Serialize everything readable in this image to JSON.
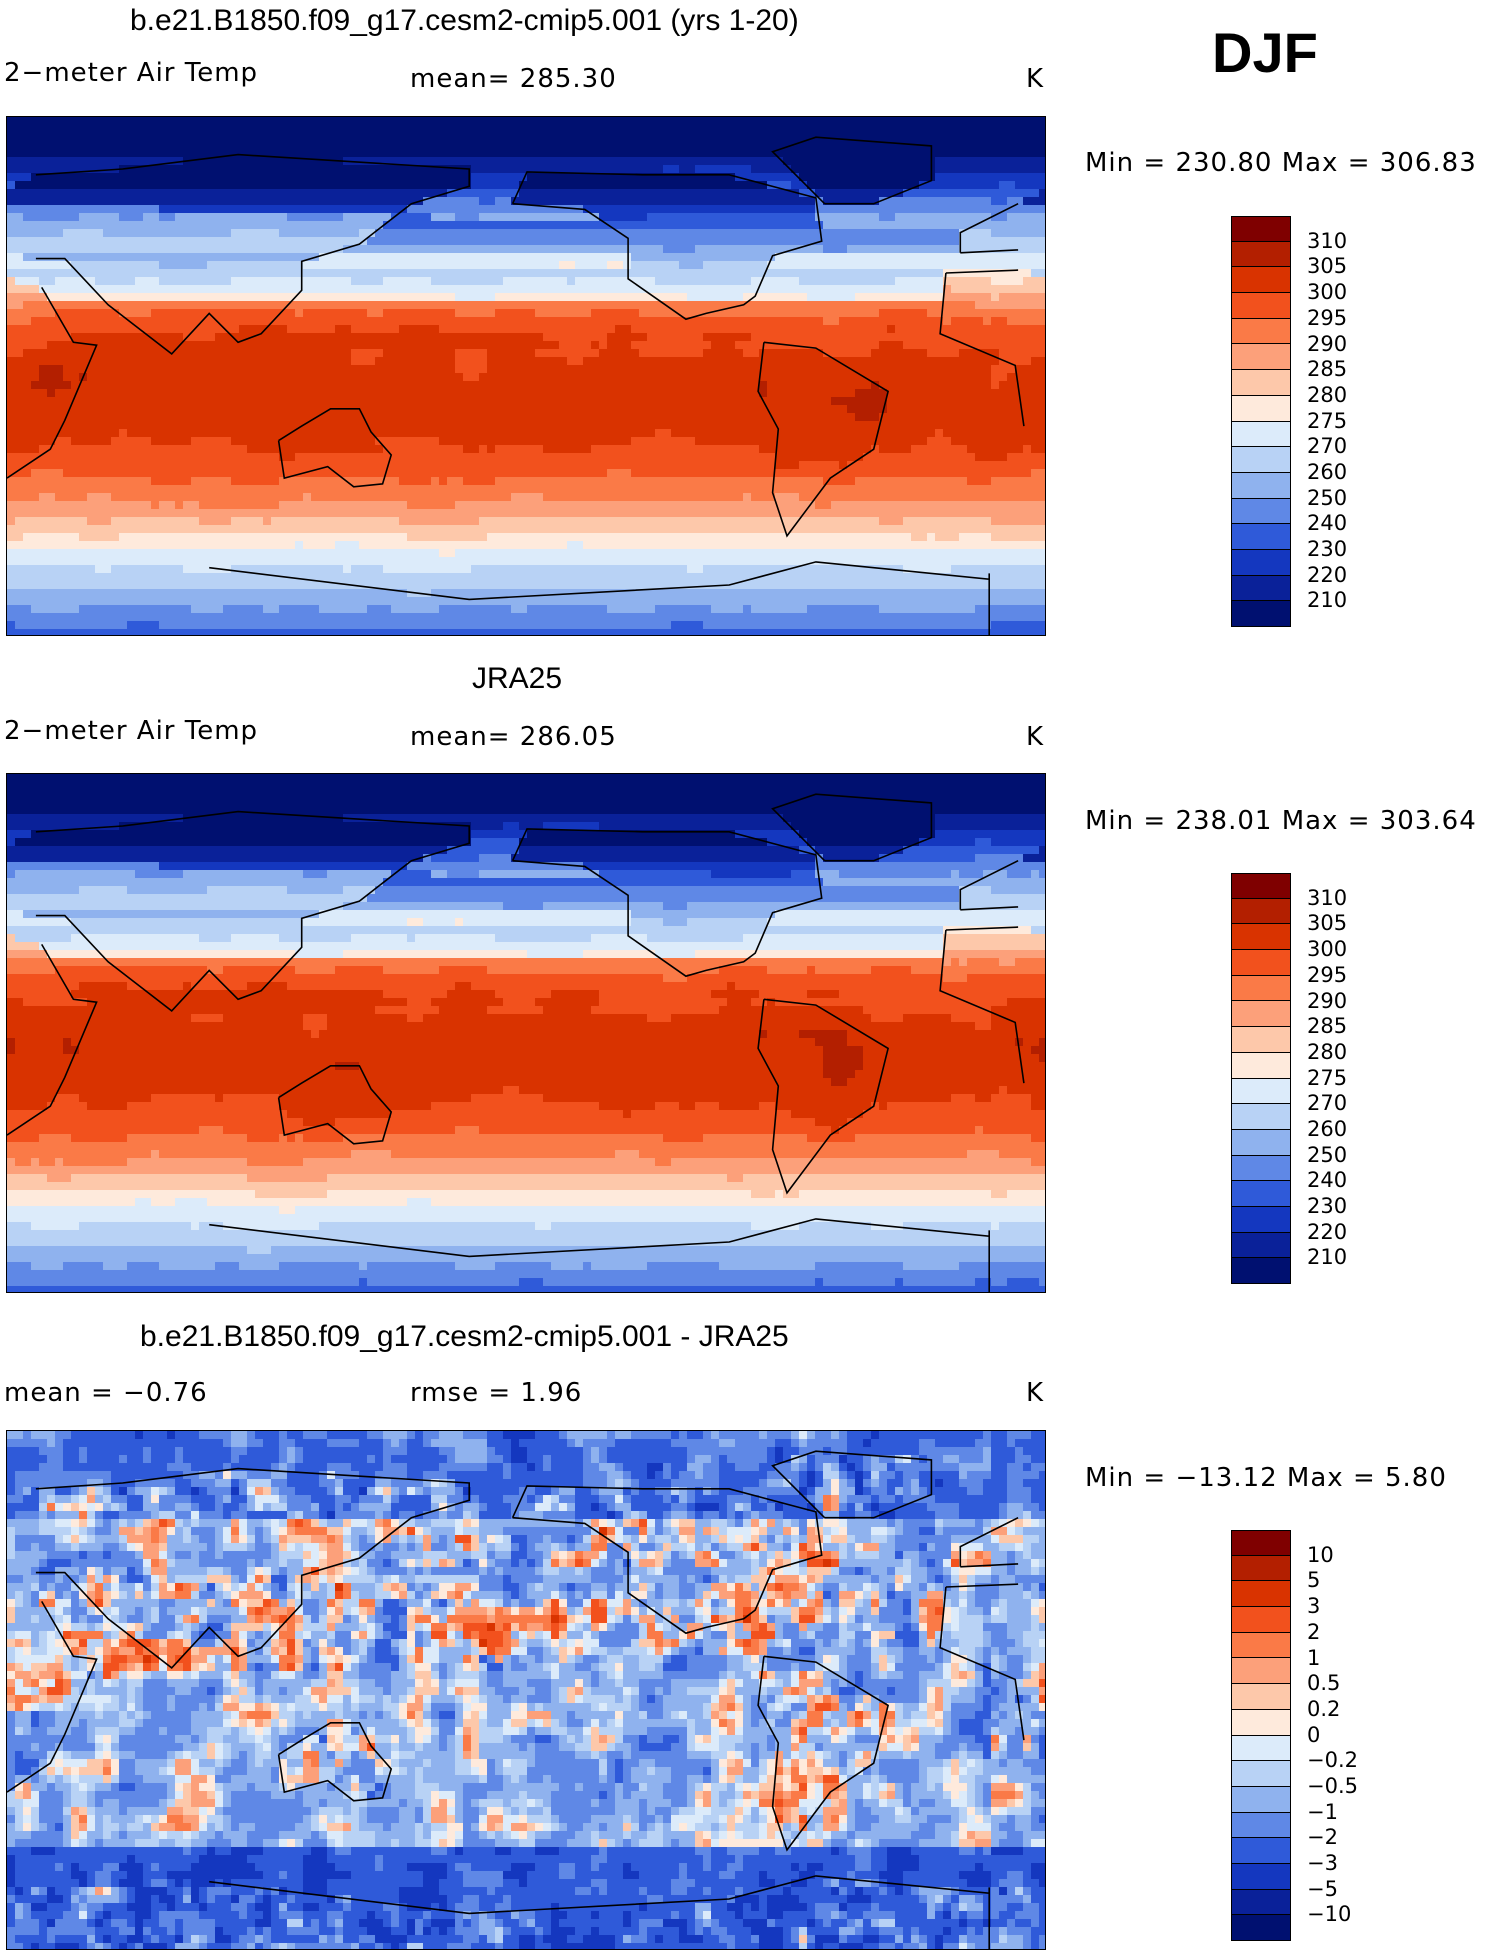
{
  "season": "DJF",
  "panels": [
    {
      "title": "b.e21.B1850.f09_g17.cesm2-cmip5.001 (yrs 1-20)",
      "left_label": "2−meter Air Temp",
      "center_label": "mean= 285.30",
      "units": "K",
      "minmax": "Min = 230.80 Max = 306.83",
      "colorbar": {
        "levels": [
          "310",
          "305",
          "300",
          "295",
          "290",
          "285",
          "280",
          "275",
          "270",
          "260",
          "250",
          "240",
          "230",
          "220",
          "210"
        ],
        "colors": [
          "#7f0000",
          "#b31f00",
          "#d93300",
          "#f2511d",
          "#fa7a47",
          "#fca07a",
          "#fdc8aa",
          "#feeadc",
          "#dcebfa",
          "#b8d2f5",
          "#8fb2ee",
          "#5f88e6",
          "#2f5ad9",
          "#1437bf",
          "#0a2199",
          "#001070"
        ]
      },
      "field": "model"
    },
    {
      "title": "JRA25",
      "left_label": "2−meter Air Temp",
      "center_label": "mean= 286.05",
      "units": "K",
      "minmax": "Min = 238.01 Max = 303.64",
      "colorbar": {
        "levels": [
          "310",
          "305",
          "300",
          "295",
          "290",
          "285",
          "280",
          "275",
          "270",
          "260",
          "250",
          "240",
          "230",
          "220",
          "210"
        ],
        "colors": [
          "#7f0000",
          "#b31f00",
          "#d93300",
          "#f2511d",
          "#fa7a47",
          "#fca07a",
          "#fdc8aa",
          "#feeadc",
          "#dcebfa",
          "#b8d2f5",
          "#8fb2ee",
          "#5f88e6",
          "#2f5ad9",
          "#1437bf",
          "#0a2199",
          "#001070"
        ]
      },
      "field": "obs"
    },
    {
      "title": "b.e21.B1850.f09_g17.cesm2-cmip5.001 - JRA25",
      "left_label": "mean =   −0.76",
      "center_label": "rmse =    1.96",
      "units": "K",
      "minmax": "Min = −13.12 Max =     5.80",
      "colorbar": {
        "levels": [
          "10",
          "5",
          "3",
          "2",
          "1",
          "0.5",
          "0.2",
          "0",
          "−0.2",
          "−0.5",
          "−1",
          "−2",
          "−3",
          "−5",
          "−10"
        ],
        "colors": [
          "#7f0000",
          "#b31f00",
          "#d93300",
          "#f2511d",
          "#fa7a47",
          "#fca07a",
          "#fdc8aa",
          "#feeadc",
          "#dcebfa",
          "#b8d2f5",
          "#8fb2ee",
          "#5f88e6",
          "#2f5ad9",
          "#1437bf",
          "#0a2199",
          "#001070"
        ]
      },
      "field": "diff"
    }
  ]
}
